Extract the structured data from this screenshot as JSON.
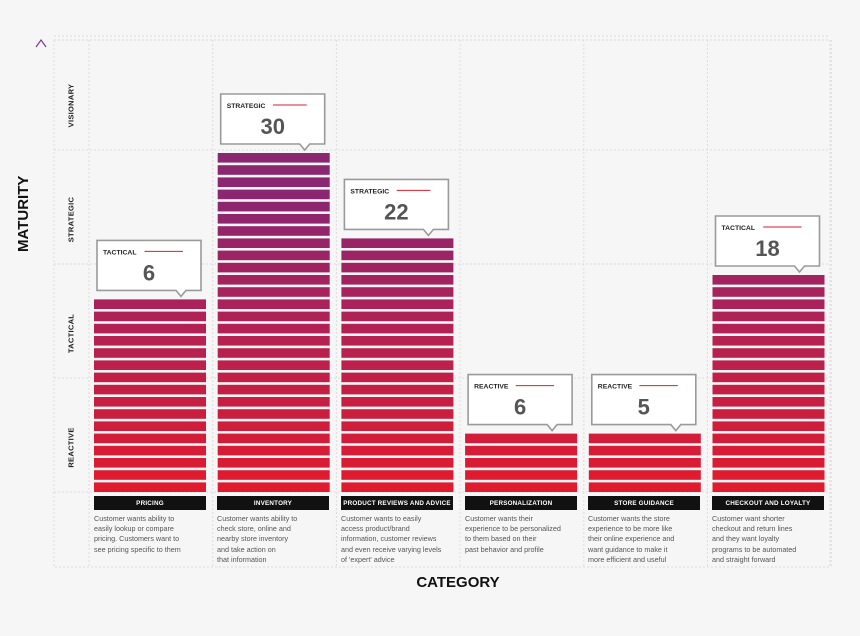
{
  "chart_data": {
    "type": "bar",
    "xlabel": "CATEGORY",
    "ylabel": "MATURITY",
    "y_levels": [
      "REACTIVE",
      "TACTICAL",
      "STRATEGIC",
      "VISIONARY"
    ],
    "categories": [
      "PRICING",
      "INVENTORY",
      "PRODUCT REVIEWS AND ADVICE",
      "PERSONALIZATION",
      "STORE GUIDANCE",
      "CHECKOUT AND LOYALTY"
    ],
    "values": [
      6,
      30,
      22,
      6,
      5,
      18
    ],
    "maturity": [
      "TACTICAL",
      "STRATEGIC",
      "STRATEGIC",
      "REACTIVE",
      "REACTIVE",
      "TACTICAL"
    ],
    "maturity_position": [
      1.75,
      2.98,
      2.2,
      0.58,
      0.49,
      1.9
    ],
    "descriptions": [
      "Customer wants ability to\neasily lookup or compare\npricing. Customers want to\nsee pricing specific to them",
      "Customer wants ability to\ncheck store, online and\nnearby store inventory\nand take action on\nthat information",
      "Customer wants to easily\naccess product/brand\ninformation, customer reviews\nand even receive varying levels\nof 'expert' advice",
      "Customer wants their\nexperience to be personalized\nto them based on their\npast behavior and profile",
      "Customer wants the store\nexperience to be more like\ntheir online experience and\nwant guidance to make it\nmore efficient and useful",
      "Customer want shorter\ncheckout and return lines\nand they want loyalty\nprograms to be automated\nand straight forward"
    ],
    "colors": {
      "bottom": "#e31b2c",
      "top": "#8b2671",
      "axis": "#7a3a8e",
      "accent_line": "#d81e2e"
    }
  }
}
